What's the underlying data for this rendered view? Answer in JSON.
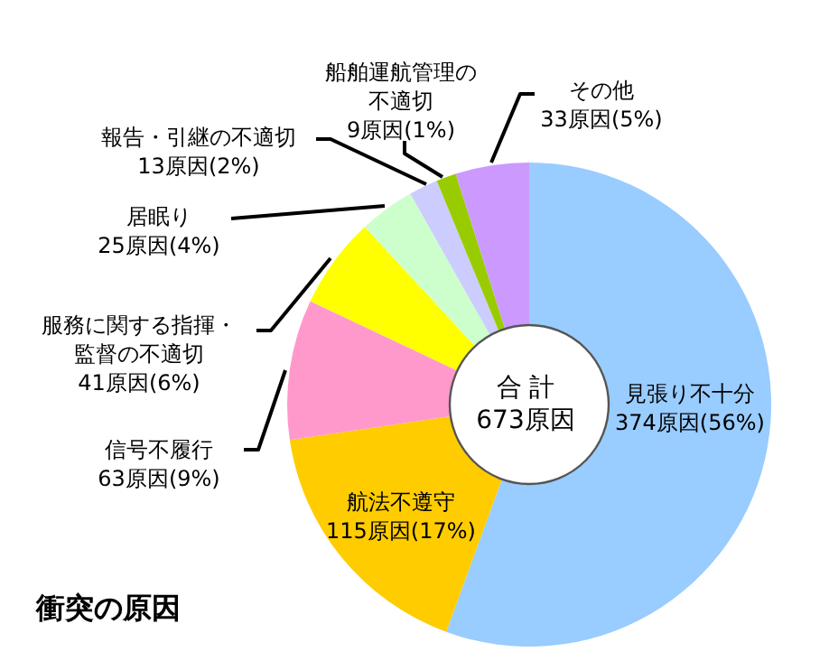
{
  "chart_data": {
    "type": "donut",
    "title": "衝突の原因",
    "categories": [
      "見張り不十分",
      "航法不遵守",
      "信号不履行",
      "服務に関する指揮・監督の不適切",
      "居眠り",
      "報告・引継の不適切",
      "船舶運航管理の不適切",
      "その他"
    ],
    "values": [
      374,
      115,
      63,
      41,
      25,
      13,
      9,
      33
    ],
    "colors": [
      "#99ccff",
      "#ffcc00",
      "#ff99cc",
      "#ffff00",
      "#ccffcc",
      "#ccccff",
      "#99cc00",
      "#cc99ff"
    ],
    "value_labels": [
      "374原因(56%)",
      "115原因(17%)",
      "63原因(9%)",
      "41原因(6%)",
      "25原因(4%)",
      "13原因(2%)",
      "9原因(1%)",
      "33原因(5%)"
    ],
    "annotations": [
      "合 計",
      "673原因"
    ]
  }
}
